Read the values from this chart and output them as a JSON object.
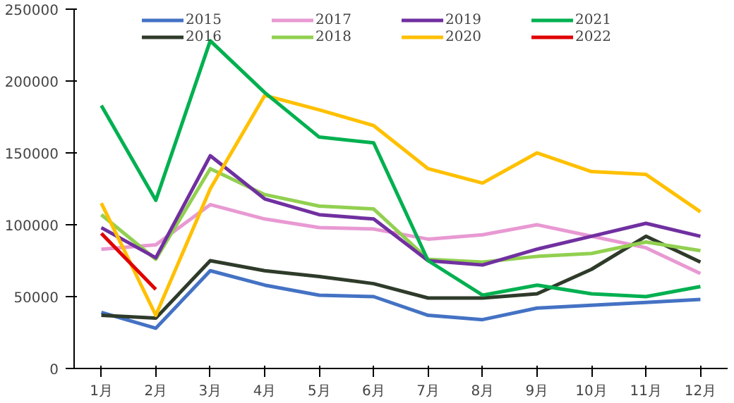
{
  "chart_data": {
    "type": "line",
    "categories": [
      "1月",
      "2月",
      "3月",
      "4月",
      "5月",
      "6月",
      "7月",
      "8月",
      "9月",
      "10月",
      "11月",
      "12月"
    ],
    "ylim": [
      0,
      250000
    ],
    "yticks": [
      0,
      50000,
      100000,
      150000,
      200000,
      250000
    ],
    "grid": false,
    "legend": "top",
    "marker": "none",
    "line_style": "solid",
    "series": [
      {
        "name": "2015",
        "color": "#4472c4",
        "values": [
          39000,
          28000,
          68000,
          58000,
          51000,
          50000,
          37000,
          34000,
          42000,
          44000,
          46000,
          48000
        ]
      },
      {
        "name": "2016",
        "color": "#2f3b2a",
        "values": [
          37000,
          35000,
          75000,
          68000,
          64000,
          59000,
          49000,
          49000,
          52000,
          69000,
          92000,
          74000
        ]
      },
      {
        "name": "2017",
        "color": "#e899d2",
        "values": [
          83000,
          86000,
          114000,
          104000,
          98000,
          97000,
          90000,
          93000,
          100000,
          92000,
          84000,
          66000
        ]
      },
      {
        "name": "2018",
        "color": "#92d050",
        "values": [
          107000,
          76000,
          139000,
          121000,
          113000,
          111000,
          76000,
          74000,
          78000,
          80000,
          88000,
          82000
        ]
      },
      {
        "name": "2019",
        "color": "#7030a0",
        "values": [
          98000,
          77000,
          148000,
          118000,
          107000,
          104000,
          75000,
          72000,
          83000,
          92000,
          101000,
          92000
        ]
      },
      {
        "name": "2020",
        "color": "#ffc000",
        "values": [
          115000,
          37000,
          125000,
          190000,
          180000,
          169000,
          139000,
          129000,
          150000,
          137000,
          135000,
          109000
        ]
      },
      {
        "name": "2021",
        "color": "#00b050",
        "values": [
          183000,
          117000,
          228000,
          192000,
          161000,
          157000,
          75000,
          51000,
          58000,
          52000,
          50000,
          57000
        ]
      },
      {
        "name": "2022",
        "color": "#e00000",
        "values": [
          94000,
          55000,
          null,
          null,
          null,
          null,
          null,
          null,
          null,
          null,
          null,
          null
        ]
      }
    ]
  }
}
